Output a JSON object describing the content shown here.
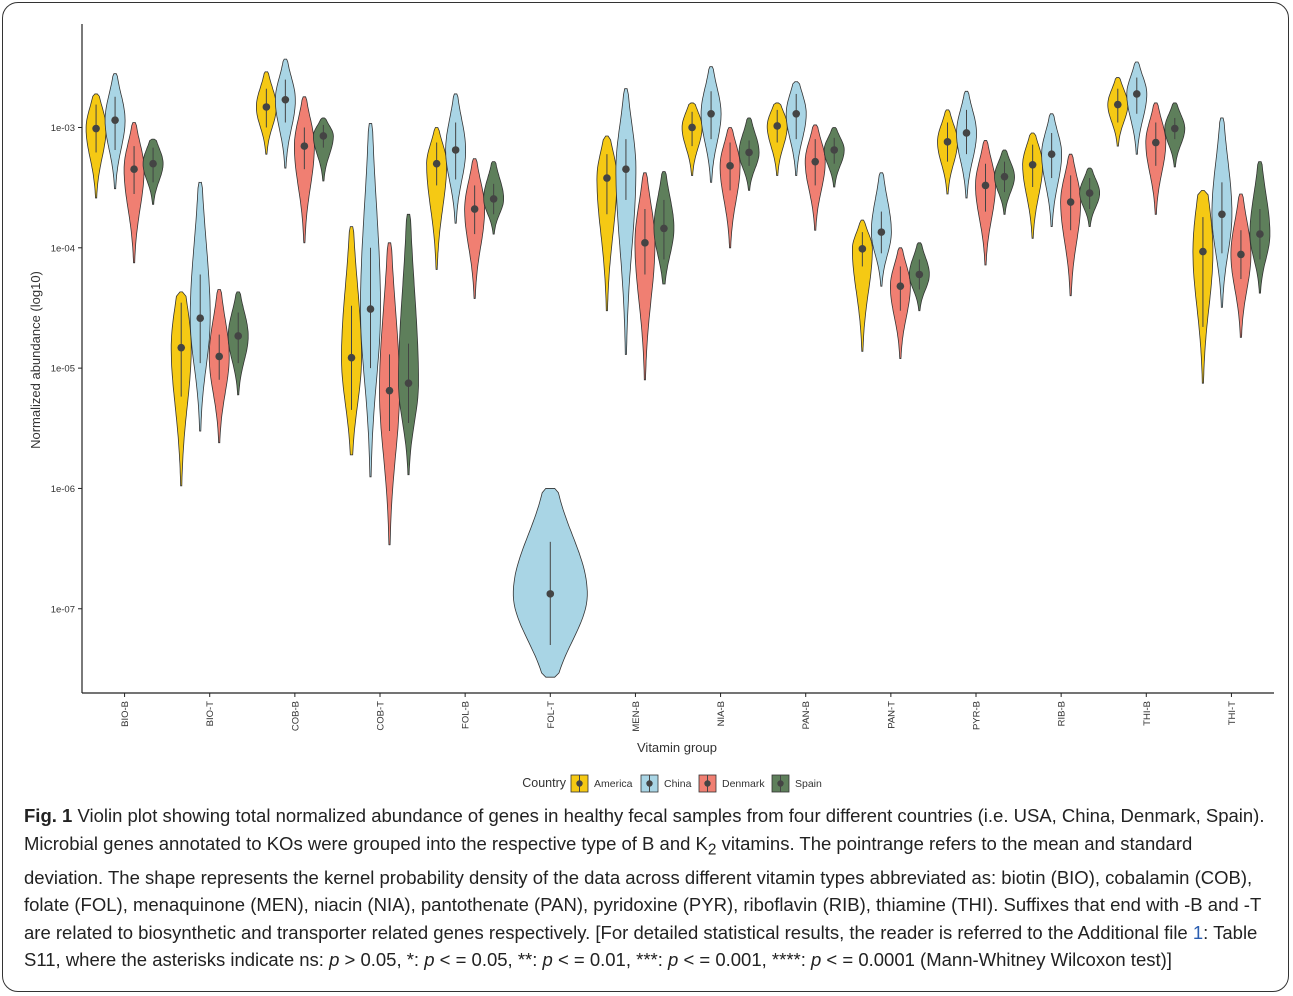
{
  "chart_data": {
    "type": "violin",
    "title": "",
    "xlabel": "Vitamin group",
    "ylabel": "Normalized abundance (log10)",
    "yscale": "log10",
    "ylim": [
      2.2e-08,
      0.01
    ],
    "y_ticks": [
      "1e-07",
      "1e-06",
      "1e-05",
      "1e-04",
      "1e-03"
    ],
    "grid": false,
    "legend_title": "Country",
    "legend_position": "bottom",
    "categories": [
      "BIO-B",
      "BIO-T",
      "COB-B",
      "COB-T",
      "FOL-B",
      "FOL-T",
      "MEN-B",
      "NIA-B",
      "PAN-B",
      "PAN-T",
      "PYR-B",
      "RIB-B",
      "THI-B",
      "THI-T"
    ],
    "series": [
      {
        "name": "America",
        "color": "#f5c914",
        "groups": [
          {
            "category": "BIO-B",
            "mean": 0.00098,
            "sd_low": 0.00062,
            "sd_high": 0.00155,
            "min": 0.00026,
            "max": 0.0019
          },
          {
            "category": "BIO-T",
            "mean": 1.48e-05,
            "sd_low": 5.8e-06,
            "sd_high": 3.5e-05,
            "min": 1.05e-06,
            "max": 4.3e-05
          },
          {
            "category": "COB-B",
            "mean": 0.00148,
            "sd_low": 0.001,
            "sd_high": 0.0021,
            "min": 0.0006,
            "max": 0.0029
          },
          {
            "category": "COB-T",
            "mean": 1.22e-05,
            "sd_low": 4.5e-06,
            "sd_high": 3.3e-05,
            "min": 1.9e-06,
            "max": 0.00015
          },
          {
            "category": "FOL-B",
            "mean": 0.0005,
            "sd_low": 0.00033,
            "sd_high": 0.00075,
            "min": 6.6e-05,
            "max": 0.001
          },
          {
            "category": "MEN-B",
            "mean": 0.00038,
            "sd_low": 0.00019,
            "sd_high": 0.0006,
            "min": 3e-05,
            "max": 0.00085
          },
          {
            "category": "NIA-B",
            "mean": 0.001,
            "sd_low": 0.0007,
            "sd_high": 0.00135,
            "min": 0.0004,
            "max": 0.0016
          },
          {
            "category": "PAN-B",
            "mean": 0.00103,
            "sd_low": 0.00075,
            "sd_high": 0.0014,
            "min": 0.0004,
            "max": 0.0016
          },
          {
            "category": "PAN-T",
            "mean": 9.8e-05,
            "sd_low": 7e-05,
            "sd_high": 0.000135,
            "min": 1.38e-05,
            "max": 0.00017
          },
          {
            "category": "PYR-B",
            "mean": 0.00076,
            "sd_low": 0.00052,
            "sd_high": 0.0011,
            "min": 0.00028,
            "max": 0.0014
          },
          {
            "category": "RIB-B",
            "mean": 0.00049,
            "sd_low": 0.00032,
            "sd_high": 0.00072,
            "min": 0.00012,
            "max": 0.0009
          },
          {
            "category": "THI-B",
            "mean": 0.00155,
            "sd_low": 0.0011,
            "sd_high": 0.0021,
            "min": 0.0007,
            "max": 0.0026
          },
          {
            "category": "THI-T",
            "mean": 9.3e-05,
            "sd_low": 2.2e-05,
            "sd_high": 0.00018,
            "min": 7.5e-06,
            "max": 0.0003
          }
        ]
      },
      {
        "name": "China",
        "color": "#a9d5e5",
        "groups": [
          {
            "category": "BIO-B",
            "mean": 0.00115,
            "sd_low": 0.00065,
            "sd_high": 0.0018,
            "min": 0.00031,
            "max": 0.0028
          },
          {
            "category": "BIO-T",
            "mean": 2.6e-05,
            "sd_low": 1.1e-05,
            "sd_high": 6e-05,
            "min": 3e-06,
            "max": 0.00035
          },
          {
            "category": "COB-B",
            "mean": 0.0017,
            "sd_low": 0.0011,
            "sd_high": 0.0025,
            "min": 0.00046,
            "max": 0.0037
          },
          {
            "category": "COB-T",
            "mean": 3.1e-05,
            "sd_low": 1e-05,
            "sd_high": 0.0001,
            "min": 1.25e-06,
            "max": 0.00108
          },
          {
            "category": "FOL-B",
            "mean": 0.00065,
            "sd_low": 0.00037,
            "sd_high": 0.0011,
            "min": 0.00016,
            "max": 0.0019
          },
          {
            "category": "FOL-T",
            "mean": 1.33e-07,
            "sd_low": 5e-08,
            "sd_high": 3.6e-07,
            "min": 2.7e-08,
            "max": 1e-06
          },
          {
            "category": "MEN-B",
            "mean": 0.00045,
            "sd_low": 0.00025,
            "sd_high": 0.0008,
            "min": 1.3e-05,
            "max": 0.0021
          },
          {
            "category": "NIA-B",
            "mean": 0.0013,
            "sd_low": 0.0008,
            "sd_high": 0.002,
            "min": 0.00035,
            "max": 0.0032
          },
          {
            "category": "PAN-B",
            "mean": 0.0013,
            "sd_low": 0.0008,
            "sd_high": 0.0019,
            "min": 0.0004,
            "max": 0.0024
          },
          {
            "category": "PAN-T",
            "mean": 0.000135,
            "sd_low": 9e-05,
            "sd_high": 0.0002,
            "min": 4.8e-05,
            "max": 0.00042
          },
          {
            "category": "PYR-B",
            "mean": 0.0009,
            "sd_low": 0.0006,
            "sd_high": 0.0014,
            "min": 0.00026,
            "max": 0.002
          },
          {
            "category": "RIB-B",
            "mean": 0.0006,
            "sd_low": 0.00038,
            "sd_high": 0.0009,
            "min": 0.00015,
            "max": 0.0013
          },
          {
            "category": "THI-B",
            "mean": 0.0019,
            "sd_low": 0.0013,
            "sd_high": 0.0026,
            "min": 0.0006,
            "max": 0.0035
          },
          {
            "category": "THI-T",
            "mean": 0.00019,
            "sd_low": 9e-05,
            "sd_high": 0.00035,
            "min": 3.2e-05,
            "max": 0.0012
          }
        ]
      },
      {
        "name": "Denmark",
        "color": "#f07f72",
        "groups": [
          {
            "category": "BIO-B",
            "mean": 0.00045,
            "sd_low": 0.00028,
            "sd_high": 0.0007,
            "min": 7.5e-05,
            "max": 0.0011
          },
          {
            "category": "BIO-T",
            "mean": 1.25e-05,
            "sd_low": 8e-06,
            "sd_high": 1.9e-05,
            "min": 2.4e-06,
            "max": 4.5e-05
          },
          {
            "category": "COB-B",
            "mean": 0.0007,
            "sd_low": 0.00045,
            "sd_high": 0.001,
            "min": 0.00011,
            "max": 0.0018
          },
          {
            "category": "COB-T",
            "mean": 6.5e-06,
            "sd_low": 3e-06,
            "sd_high": 1.3e-05,
            "min": 3.4e-07,
            "max": 0.00011
          },
          {
            "category": "FOL-B",
            "mean": 0.00021,
            "sd_low": 0.00013,
            "sd_high": 0.00033,
            "min": 3.8e-05,
            "max": 0.00055
          },
          {
            "category": "MEN-B",
            "mean": 0.00011,
            "sd_low": 6e-05,
            "sd_high": 0.00021,
            "min": 8e-06,
            "max": 0.00042
          },
          {
            "category": "NIA-B",
            "mean": 0.00048,
            "sd_low": 0.0003,
            "sd_high": 0.00075,
            "min": 0.0001,
            "max": 0.001
          },
          {
            "category": "PAN-B",
            "mean": 0.00052,
            "sd_low": 0.00033,
            "sd_high": 0.0008,
            "min": 0.00014,
            "max": 0.00105
          },
          {
            "category": "PAN-T",
            "mean": 4.8e-05,
            "sd_low": 3e-05,
            "sd_high": 7e-05,
            "min": 1.2e-05,
            "max": 0.0001
          },
          {
            "category": "PYR-B",
            "mean": 0.00033,
            "sd_low": 0.0002,
            "sd_high": 0.0005,
            "min": 7.2e-05,
            "max": 0.00078
          },
          {
            "category": "RIB-B",
            "mean": 0.00024,
            "sd_low": 0.00014,
            "sd_high": 0.0004,
            "min": 4e-05,
            "max": 0.0006
          },
          {
            "category": "THI-B",
            "mean": 0.00075,
            "sd_low": 0.00048,
            "sd_high": 0.0011,
            "min": 0.00019,
            "max": 0.0016
          },
          {
            "category": "THI-T",
            "mean": 8.8e-05,
            "sd_low": 5.5e-05,
            "sd_high": 0.00014,
            "min": 1.8e-05,
            "max": 0.00028
          }
        ]
      },
      {
        "name": "Spain",
        "color": "#5e7f5b",
        "groups": [
          {
            "category": "BIO-B",
            "mean": 0.0005,
            "sd_low": 0.00035,
            "sd_high": 0.00068,
            "min": 0.00023,
            "max": 0.0008
          },
          {
            "category": "BIO-T",
            "mean": 1.85e-05,
            "sd_low": 1.1e-05,
            "sd_high": 2.9e-05,
            "min": 6e-06,
            "max": 4.3e-05
          },
          {
            "category": "COB-B",
            "mean": 0.00085,
            "sd_low": 0.00068,
            "sd_high": 0.00105,
            "min": 0.00036,
            "max": 0.0012
          },
          {
            "category": "COB-T",
            "mean": 7.5e-06,
            "sd_low": 3.5e-06,
            "sd_high": 1.6e-05,
            "min": 1.3e-06,
            "max": 0.00019
          },
          {
            "category": "FOL-B",
            "mean": 0.000255,
            "sd_low": 0.00019,
            "sd_high": 0.00034,
            "min": 0.00013,
            "max": 0.00052
          },
          {
            "category": "MEN-B",
            "mean": 0.000145,
            "sd_low": 8e-05,
            "sd_high": 0.00025,
            "min": 5e-05,
            "max": 0.00043
          },
          {
            "category": "NIA-B",
            "mean": 0.00062,
            "sd_low": 0.00048,
            "sd_high": 0.00078,
            "min": 0.0003,
            "max": 0.0012
          },
          {
            "category": "PAN-B",
            "mean": 0.00065,
            "sd_low": 0.0005,
            "sd_high": 0.00082,
            "min": 0.00032,
            "max": 0.001
          },
          {
            "category": "PAN-T",
            "mean": 6e-05,
            "sd_low": 4.5e-05,
            "sd_high": 8e-05,
            "min": 3e-05,
            "max": 0.00011
          },
          {
            "category": "PYR-B",
            "mean": 0.00039,
            "sd_low": 0.00029,
            "sd_high": 0.00052,
            "min": 0.00019,
            "max": 0.00065
          },
          {
            "category": "RIB-B",
            "mean": 0.000285,
            "sd_low": 0.00021,
            "sd_high": 0.00038,
            "min": 0.00015,
            "max": 0.00046
          },
          {
            "category": "THI-B",
            "mean": 0.00098,
            "sd_low": 0.0008,
            "sd_high": 0.0012,
            "min": 0.00047,
            "max": 0.0016
          },
          {
            "category": "THI-T",
            "mean": 0.00013,
            "sd_low": 8e-05,
            "sd_high": 0.00021,
            "min": 4.2e-05,
            "max": 0.00052
          }
        ]
      }
    ]
  },
  "caption": {
    "label": "Fig. 1",
    "text_1": " Violin plot showing total normalized abundance of genes in healthy fecal samples from four different countries (i.e. USA, China, Denmark, Spain). Microbial genes annotated to KOs were grouped into the respective type of B and K",
    "subscript": "2",
    "text_2": " vitamins. The pointrange refers to the mean and standard deviation. The shape represents the kernel probability density of the data across different vitamin types abbreviated as: biotin (BIO), cobalamin (COB), folate (FOL), menaquinone (MEN), niacin (NIA), pantothenate (PAN), pyridoxine (PYR), riboflavin (RIB), thiamine (THI). Suffixes that end with -B and -T are related to biosynthetic and transporter related genes respectively. [For detailed statistical results, the reader is referred to the Additional file ",
    "link": "1",
    "text_3": ": Table S11, where the asterisks indicate ns: ",
    "p1": "p",
    "text_4": " > 0.05, *: ",
    "p2": "p",
    "text_5": " < = 0.05, **: ",
    "p3": "p",
    "text_6": " < = 0.01, ***: ",
    "p4": "p",
    "text_7": " < = 0.001, ****: ",
    "p5": "p",
    "text_8": " < = 0.0001 (Mann-Whitney Wilcoxon test)]"
  }
}
